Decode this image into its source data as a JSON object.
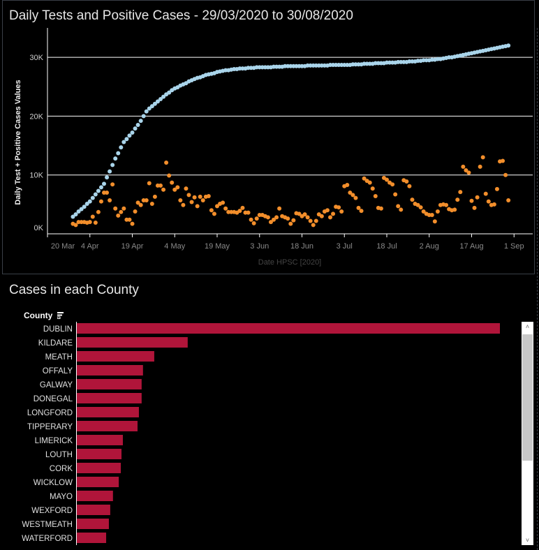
{
  "chart_data": [
    {
      "type": "scatter",
      "title": "Daily Tests and Positive Cases - 29/03/2020 to 30/08/2020",
      "xlabel": "Date HPSC [2020]",
      "ylabel": "Daily Test + Positive Cases Values",
      "x_start_date": "2020-03-29",
      "x_range": [
        "2020-03-20",
        "2020-09-05"
      ],
      "x_ticks": [
        "20 Mar",
        "4 Apr",
        "19 Apr",
        "4 May",
        "19 May",
        "3 Jun",
        "18 Jun",
        "3 Jul",
        "18 Jul",
        "2 Aug",
        "17 Aug",
        "1 Sep"
      ],
      "y_unit": "K",
      "ylim": [
        0,
        34
      ],
      "y_ticks": [
        {
          "value": 0,
          "label": "0K"
        },
        {
          "value": 10,
          "label": "10K"
        },
        {
          "value": 20,
          "label": "20K"
        },
        {
          "value": 30,
          "label": "30K"
        }
      ],
      "grid": true,
      "series": [
        {
          "color": "#a9d4ea",
          "values": [
            2.9,
            3.3,
            3.8,
            4.2,
            4.6,
            5.1,
            5.5,
            6.1,
            6.7,
            7.3,
            7.9,
            8.5,
            9.6,
            10.6,
            11.7,
            12.8,
            13.7,
            14.7,
            15.6,
            16.1,
            16.7,
            17.2,
            17.9,
            18.5,
            19.2,
            20.0,
            20.8,
            21.3,
            21.7,
            22.1,
            22.5,
            22.9,
            23.3,
            23.7,
            24.0,
            24.4,
            24.7,
            24.9,
            25.2,
            25.4,
            25.6,
            25.9,
            26.1,
            26.3,
            26.5,
            26.6,
            26.8,
            27.0,
            27.1,
            27.2,
            27.3,
            27.5,
            27.6,
            27.7,
            27.8,
            27.8,
            27.9,
            28.0,
            28.0,
            28.1,
            28.1,
            28.1,
            28.2,
            28.2,
            28.2,
            28.3,
            28.3,
            28.3,
            28.3,
            28.3,
            28.3,
            28.4,
            28.4,
            28.4,
            28.4,
            28.5,
            28.5,
            28.5,
            28.5,
            28.5,
            28.5,
            28.5,
            28.5,
            28.6,
            28.6,
            28.6,
            28.6,
            28.6,
            28.6,
            28.6,
            28.6,
            28.7,
            28.7,
            28.7,
            28.7,
            28.7,
            28.7,
            28.7,
            28.7,
            28.8,
            28.8,
            28.8,
            28.8,
            28.9,
            28.9,
            28.9,
            28.9,
            29.0,
            29.0,
            29.0,
            29.0,
            29.1,
            29.1,
            29.1,
            29.1,
            29.2,
            29.2,
            29.2,
            29.2,
            29.3,
            29.3,
            29.3,
            29.4,
            29.4,
            29.5,
            29.5,
            29.5,
            29.6,
            29.6,
            29.7,
            29.7,
            29.8,
            29.9,
            30.0,
            30.0,
            30.1,
            30.2,
            30.3,
            30.4,
            30.5,
            30.6,
            30.7,
            30.8,
            30.9,
            31.0,
            31.1,
            31.2,
            31.3,
            31.4,
            31.5,
            31.6,
            31.7,
            31.8,
            31.9,
            32.0
          ]
        },
        {
          "color": "#f28e2b",
          "values": [
            1.7,
            1.5,
            2.0,
            2.0,
            2.0,
            1.9,
            2.0,
            2.9,
            1.9,
            3.7,
            5.5,
            7.0,
            7.0,
            5.7,
            8.4,
            4.3,
            3.1,
            3.7,
            4.3,
            2.4,
            2.4,
            1.7,
            3.8,
            5.3,
            4.9,
            5.7,
            5.7,
            8.6,
            5.1,
            6.3,
            8.2,
            8.2,
            7.5,
            12.1,
            9.9,
            8.7,
            7.5,
            7.9,
            5.7,
            4.9,
            7.7,
            6.6,
            5.4,
            6.2,
            4.7,
            6.3,
            5.7,
            6.3,
            6.4,
            4.0,
            3.4,
            4.7,
            5.1,
            5.3,
            4.3,
            3.7,
            3.7,
            3.7,
            3.6,
            3.9,
            4.4,
            3.6,
            3.6,
            2.4,
            1.8,
            2.6,
            3.2,
            3.2,
            3.0,
            2.8,
            2.0,
            2.4,
            2.8,
            4.3,
            3.0,
            2.8,
            2.6,
            1.7,
            2.3,
            3.5,
            3.4,
            3.0,
            3.3,
            2.8,
            2.2,
            1.5,
            2.2,
            3.3,
            3.0,
            3.8,
            4.0,
            2.8,
            3.4,
            4.6,
            4.5,
            3.8,
            8.1,
            8.3,
            7.0,
            6.6,
            6.1,
            4.4,
            3.9,
            9.4,
            9.0,
            8.7,
            7.7,
            6.4,
            4.4,
            4.3,
            9.5,
            9.2,
            8.7,
            8.4,
            6.7,
            4.7,
            4.1,
            9.1,
            8.9,
            8.1,
            5.8,
            5.1,
            4.9,
            4.5,
            3.8,
            3.4,
            3.2,
            3.2,
            2.1,
            3.8,
            4.9,
            5.0,
            4.9,
            4.2,
            4.0,
            4.1,
            5.8,
            7.1,
            11.4,
            10.8,
            10.4,
            5.6,
            4.4,
            6.2,
            11.4,
            13.0,
            6.8,
            5.5,
            4.9,
            5.0,
            7.6,
            12.3,
            12.4,
            10.0,
            5.7
          ]
        }
      ]
    },
    {
      "type": "bar",
      "orientation": "horizontal",
      "title": "Cases in each County",
      "category_header": "County",
      "color": "#b0153a",
      "categories": [
        "DUBLIN",
        "KILDARE",
        "MEATH",
        "OFFALY",
        "GALWAY",
        "DONEGAL",
        "LONGFORD",
        "TIPPERARY",
        "LIMERICK",
        "LOUTH",
        "CORK",
        "WICKLOW",
        "MAYO",
        "WEXFORD",
        "WESTMEATH",
        "WATERFORD"
      ],
      "values": [
        12400,
        3250,
        2270,
        1940,
        1900,
        1900,
        1820,
        1780,
        1350,
        1310,
        1290,
        1230,
        1060,
        980,
        940,
        860
      ]
    }
  ],
  "icons": {
    "sort": "sort-descending-icon",
    "scroll_up": "chevron-up-icon",
    "scroll_down": "chevron-down-icon"
  },
  "scrollbar": {
    "up": "˄",
    "down": "˅"
  }
}
